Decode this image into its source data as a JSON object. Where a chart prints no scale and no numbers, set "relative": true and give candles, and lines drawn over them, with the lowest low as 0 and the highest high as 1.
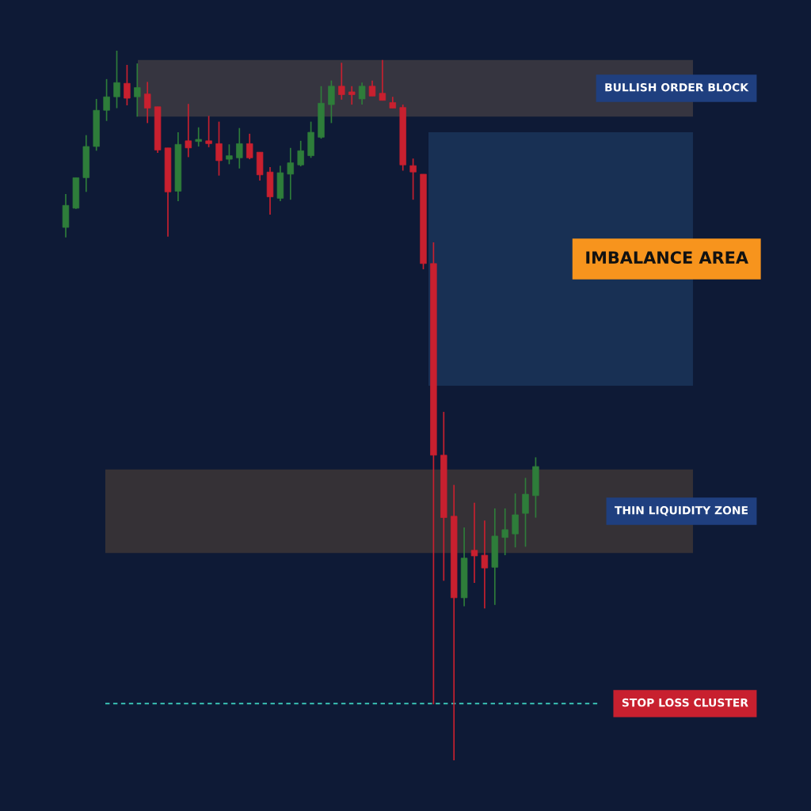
{
  "chart_data": {
    "type": "candlestick",
    "relative": true,
    "categories": [
      null,
      null,
      null,
      null,
      null,
      null,
      null,
      null,
      null,
      null,
      null,
      null,
      null,
      null,
      null,
      null,
      null,
      null,
      null,
      null,
      null,
      null,
      null,
      null,
      null,
      null,
      null,
      null,
      null,
      null,
      null,
      null,
      null,
      null,
      null,
      null,
      null,
      null,
      null,
      null,
      null,
      null,
      null,
      null,
      null,
      null,
      null
    ],
    "ohlc": [
      [
        0.751,
        0.798,
        0.737,
        0.782
      ],
      [
        0.778,
        0.821,
        0.777,
        0.821
      ],
      [
        0.821,
        0.881,
        0.801,
        0.865
      ],
      [
        0.865,
        0.932,
        0.859,
        0.916
      ],
      [
        0.916,
        0.96,
        0.901,
        0.935
      ],
      [
        0.935,
        1,
        0.919,
        0.955
      ],
      [
        0.954,
        0.98,
        0.923,
        0.933
      ],
      [
        0.935,
        0.982,
        0.907,
        0.948
      ],
      [
        0.939,
        0.956,
        0.898,
        0.919
      ],
      [
        0.921,
        0.921,
        0.856,
        0.86
      ],
      [
        0.863,
        0.863,
        0.738,
        0.801
      ],
      [
        0.802,
        0.885,
        0.788,
        0.868
      ],
      [
        0.873,
        0.925,
        0.85,
        0.863
      ],
      [
        0.872,
        0.892,
        0.865,
        0.875
      ],
      [
        0.873,
        0.908,
        0.864,
        0.869
      ],
      [
        0.869,
        0.9,
        0.824,
        0.845
      ],
      [
        0.847,
        0.868,
        0.84,
        0.852
      ],
      [
        0.849,
        0.891,
        0.834,
        0.869
      ],
      [
        0.869,
        0.883,
        0.847,
        0.849
      ],
      [
        0.857,
        0.857,
        0.817,
        0.825
      ],
      [
        0.829,
        0.836,
        0.769,
        0.794
      ],
      [
        0.792,
        0.838,
        0.788,
        0.828
      ],
      [
        0.826,
        0.863,
        0.79,
        0.842
      ],
      [
        0.839,
        0.873,
        0.837,
        0.859
      ],
      [
        0.852,
        0.9,
        0.849,
        0.885
      ],
      [
        0.878,
        0.95,
        0.876,
        0.926
      ],
      [
        0.924,
        0.958,
        0.898,
        0.95
      ],
      [
        0.95,
        0.983,
        0.931,
        0.938
      ],
      [
        0.942,
        0.95,
        0.924,
        0.938
      ],
      [
        0.932,
        0.955,
        0.924,
        0.95
      ],
      [
        0.95,
        0.958,
        0.936,
        0.936
      ],
      [
        0.94,
        0.987,
        0.93,
        0.93
      ],
      [
        0.927,
        0.935,
        0.919,
        0.919
      ],
      [
        0.92,
        0.924,
        0.831,
        0.839
      ],
      [
        0.838,
        0.848,
        0.79,
        0.829
      ],
      [
        0.826,
        0.826,
        0.692,
        0.7
      ],
      [
        0.7,
        0.73,
        0.079,
        0.43
      ],
      [
        0.43,
        0.491,
        0.253,
        0.342
      ],
      [
        0.344,
        0.388,
        0,
        0.229
      ],
      [
        0.229,
        0.328,
        0.217,
        0.285
      ],
      [
        0.296,
        0.363,
        0.25,
        0.288
      ],
      [
        0.289,
        0.338,
        0.214,
        0.271
      ],
      [
        0.272,
        0.355,
        0.219,
        0.316
      ],
      [
        0.314,
        0.355,
        0.289,
        0.325
      ],
      [
        0.319,
        0.376,
        0.3,
        0.346
      ],
      [
        0.348,
        0.398,
        0.301,
        0.375
      ],
      [
        0.373,
        0.427,
        0.342,
        0.414
      ]
    ],
    "colors": [
      "#2e7d3a",
      "#2e7d3a",
      "#2e7d3a",
      "#2e7d3a",
      "#2e7d3a",
      "#2e7d3a",
      "#c8202f",
      "#2e7d3a",
      "#c8202f",
      "#c8202f",
      "#c8202f",
      "#2e7d3a",
      "#c8202f",
      "#2e7d3a",
      "#c8202f",
      "#c8202f",
      "#2e7d3a",
      "#2e7d3a",
      "#c8202f",
      "#c8202f",
      "#c8202f",
      "#2e7d3a",
      "#2e7d3a",
      "#2e7d3a",
      "#2e7d3a",
      "#2e7d3a",
      "#2e7d3a",
      "#c8202f",
      "#c8202f",
      "#2e7d3a",
      "#c8202f",
      "#c8202f",
      "#c8202f",
      "#c8202f",
      "#c8202f",
      "#c8202f",
      "#c8202f",
      "#c8202f",
      "#c8202f",
      "#2e7d3a",
      "#c8202f",
      "#c8202f",
      "#2e7d3a",
      "#2e7d3a",
      "#2e7d3a",
      "#2e7d3a",
      "#2e7d3a"
    ],
    "bands": [
      {
        "axis": "y",
        "from": 0.907,
        "to": 0.987,
        "label": "BULLISH ORDER BLOCK",
        "color": "#3b3841"
      },
      {
        "axis": "y",
        "from": 0.528,
        "to": 0.885,
        "label": "IMBALANCE AREA",
        "color": "#1a3358"
      },
      {
        "axis": "y",
        "from": 0.292,
        "to": 0.41,
        "label": "THIN LIQUIDITY ZONE",
        "color": "#3a3436"
      }
    ],
    "ref_lines": [
      {
        "axis": "y",
        "value": 0.08,
        "label": "STOP LOSS CLUSTER",
        "color": "#3fd6c4",
        "line_style": "dashed"
      }
    ]
  }
}
